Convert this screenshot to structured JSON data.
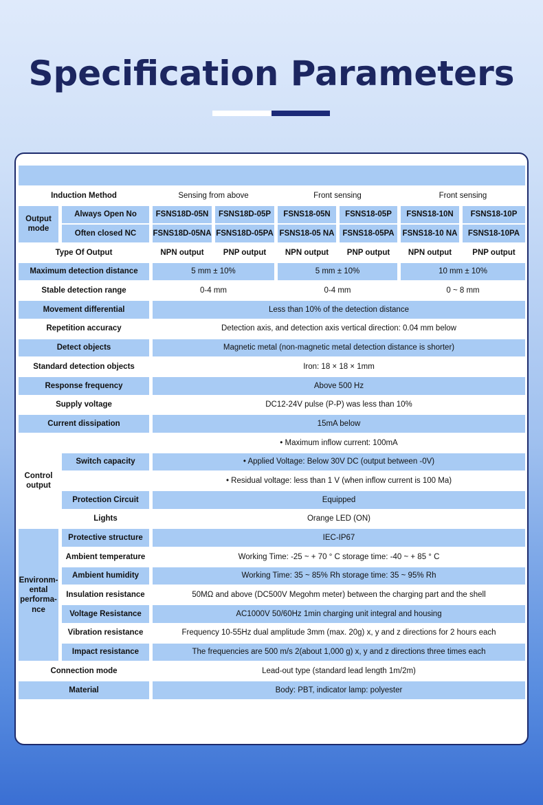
{
  "title": "Specification Parameters",
  "colors": {
    "title": "#1c2660",
    "shade": "#a8cbf4",
    "border": "#1c2a6b"
  },
  "rows": {
    "induction": {
      "label": "Induction Method",
      "v": [
        "Sensing from above",
        "Front sensing",
        "Front sensing"
      ]
    },
    "output_mode": {
      "label": "Output mode",
      "no_label": "Always Open No",
      "nc_label": "Often closed NC",
      "no": [
        "FSNS18D-05N",
        "FSNS18D-05P",
        "FSNS18-05N",
        "FSNS18-05P",
        "FSNS18-10N",
        "FSNS18-10P"
      ],
      "nc": [
        "FSNS18D-05NA",
        "FSNS18D-05PA",
        "FSNS18-05 NA",
        "FSNS18-05PA",
        "FSNS18-10 NA",
        "FSNS18-10PA"
      ]
    },
    "type": {
      "label": "Type Of Output",
      "v": [
        "NPN output",
        "PNP output",
        "NPN output",
        "PNP output",
        "NPN output",
        "PNP output"
      ]
    },
    "max": {
      "label": "Maximum detection distance",
      "v": [
        "5 mm ± 10%",
        "5 mm ± 10%",
        "10 mm ± 10%"
      ]
    },
    "stable": {
      "label": "Stable detection range",
      "v": [
        "0-4 mm",
        "0-4 mm",
        "0 ~ 8 mm"
      ]
    },
    "movement": {
      "label": "Movement differential",
      "v": "Less than 10% of the detection distance"
    },
    "repetition": {
      "label": "Repetition accuracy",
      "v": "Detection axis, and detection axis vertical direction: 0.04 mm below"
    },
    "detect": {
      "label": "Detect objects",
      "v": "Magnetic metal (non-magnetic metal detection distance is shorter)"
    },
    "standard": {
      "label": "Standard detection objects",
      "v": "Iron: 18 × 18 × 1mm"
    },
    "response": {
      "label": "Response frequency",
      "v": "Above 500 Hz"
    },
    "supply": {
      "label": "Supply voltage",
      "v": "DC12-24V pulse (P-P) was less than 10%"
    },
    "current": {
      "label": "Current dissipation",
      "v": "15mA below"
    },
    "control": {
      "label": "Control output",
      "switch_label": "Switch capacity",
      "switch": [
        "• Maximum inflow current: 100mA",
        "• Applied Voltage: Below 30V DC (output between -0V)",
        "• Residual voltage: less than 1 V (when inflow current is 100 Ma)"
      ],
      "protection_label": "Protection Circuit",
      "protection": "Equipped",
      "lights_label": "Lights",
      "lights": "Orange LED (ON)"
    },
    "env": {
      "label": "Environm-ental performa-nce",
      "items": [
        {
          "label": "Protective structure",
          "v": "IEC-IP67"
        },
        {
          "label": "Ambient temperature",
          "v": "Working Time: -25 ~ + 70 ° C storage time: -40 ~ + 85 ° C"
        },
        {
          "label": "Ambient humidity",
          "v": "Working Time: 35 ~ 85% Rh storage time: 35 ~ 95% Rh"
        },
        {
          "label": "Insulation resistance",
          "v": "50MΩ and above (DC500V Megohm meter) between the charging part and the shell"
        },
        {
          "label": "Voltage Resistance",
          "v": "AC1000V 50/60Hz 1min charging unit integral and housing"
        },
        {
          "label": "Vibration resistance",
          "v": "Frequency 10-55Hz dual amplitude 3mm (max. 20g) x, y and z directions for 2 hours each"
        },
        {
          "label": "Impact resistance",
          "v": "The frequencies are 500 m/s 2(about 1,000 g) x, y and z directions three times each"
        }
      ]
    },
    "connection": {
      "label": "Connection mode",
      "v": "Lead-out type (standard lead length 1m/2m)"
    },
    "material": {
      "label": "Material",
      "v": "Body: PBT, indicator lamp: polyester"
    }
  }
}
